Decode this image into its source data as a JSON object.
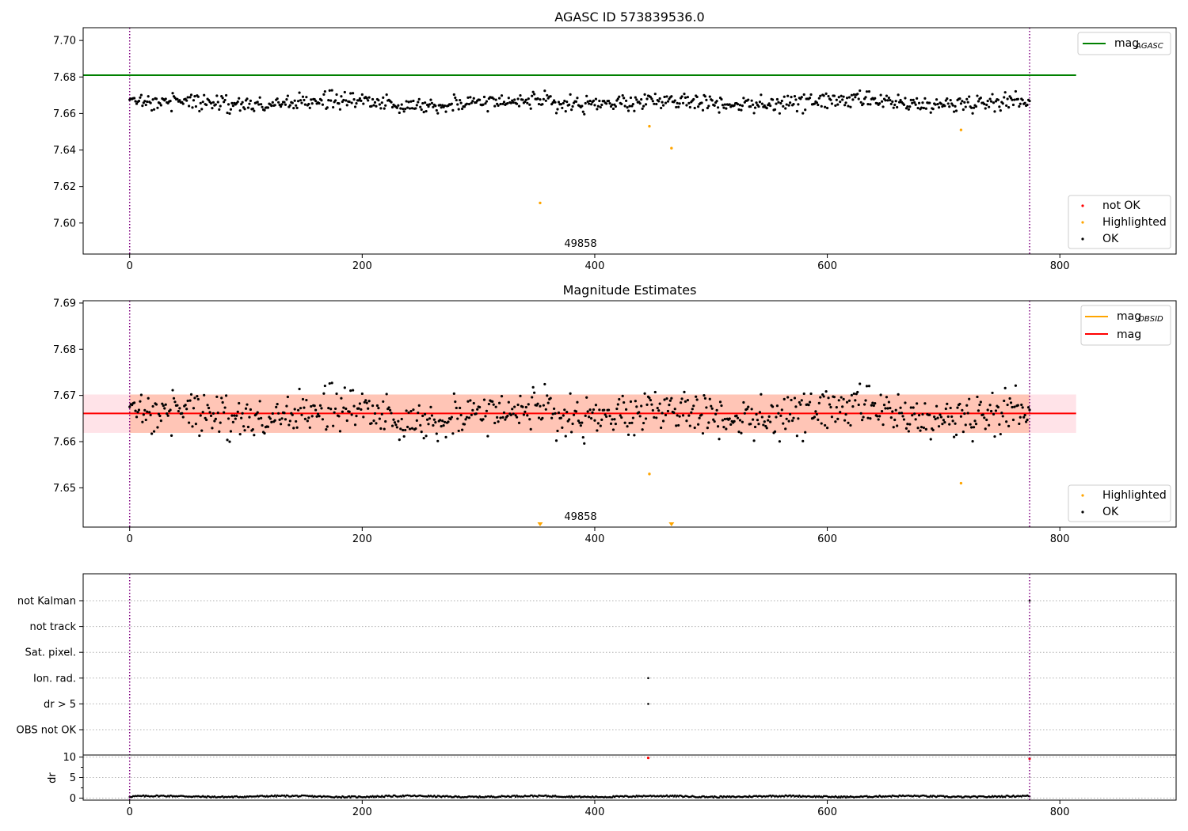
{
  "chart_data": [
    {
      "type": "scatter",
      "title": "AGASC ID 573839536.0",
      "xlim": [
        -40,
        900
      ],
      "ylim": [
        7.583,
        7.707
      ],
      "xticks": [
        0,
        200,
        400,
        600,
        800
      ],
      "yticks": [
        7.6,
        7.62,
        7.64,
        7.66,
        7.68,
        7.7
      ],
      "ytick_labels": [
        "7.60",
        "7.62",
        "7.64",
        "7.66",
        "7.68",
        "7.70"
      ],
      "vlines": [
        0,
        774
      ],
      "vline_color": "#800080",
      "annotation": "49858",
      "annotation_x": 387,
      "hlines": [
        {
          "name": "mag",
          "subscript": "AGASC",
          "y": 7.681,
          "x": [
            -40,
            814
          ],
          "color": "#008000"
        }
      ],
      "ok_points": {
        "n": 775,
        "x_range": [
          0,
          774
        ],
        "mean": 7.666,
        "spread": 0.0045,
        "color": "#000000"
      },
      "highlighted_points": [
        {
          "x": 353,
          "y": 7.611
        },
        {
          "x": 447,
          "y": 7.653
        },
        {
          "x": 466,
          "y": 7.641
        },
        {
          "x": 715,
          "y": 7.651
        }
      ],
      "legend_top": [
        {
          "label": "mag",
          "subscript": "AGASC",
          "kind": "line",
          "color": "#008000"
        }
      ],
      "legend_bottom": [
        {
          "label": "not OK",
          "kind": "dot",
          "color": "#ff0000"
        },
        {
          "label": "Highlighted",
          "kind": "dot",
          "color": "#ffa500"
        },
        {
          "label": "OK",
          "kind": "dot",
          "color": "#000000"
        }
      ]
    },
    {
      "type": "scatter",
      "title": "Magnitude Estimates",
      "xlim": [
        -40,
        900
      ],
      "ylim": [
        7.6415,
        7.6905
      ],
      "xticks": [
        0,
        200,
        400,
        600,
        800
      ],
      "yticks": [
        7.65,
        7.66,
        7.67,
        7.68,
        7.69
      ],
      "ytick_labels": [
        "7.65",
        "7.66",
        "7.67",
        "7.68",
        "7.69"
      ],
      "vlines": [
        0,
        774
      ],
      "vline_color": "#800080",
      "annotation": "49858",
      "annotation_x": 387,
      "band_outer": {
        "x": [
          -40,
          814
        ],
        "y": [
          7.6619,
          7.6702
        ],
        "color": "#ffc0cb"
      },
      "band_inner": {
        "x": [
          0,
          774
        ],
        "y": [
          7.6619,
          7.6702
        ],
        "color": "#ffa07a"
      },
      "hlines": [
        {
          "name": "mag",
          "subscript": "",
          "y": 7.6661,
          "x": [
            -40,
            814
          ],
          "color": "#ff0000"
        }
      ],
      "ok_points": {
        "n": 775,
        "x_range": [
          0,
          774
        ],
        "mean": 7.666,
        "spread": 0.0045,
        "color": "#000000"
      },
      "highlighted_points": [
        {
          "x": 447,
          "y": 7.653
        },
        {
          "x": 715,
          "y": 7.651
        }
      ],
      "offscale_markers": [
        353,
        466
      ],
      "legend_top": [
        {
          "label": "mag",
          "subscript": "OBSID",
          "kind": "line",
          "color": "#ffa500"
        },
        {
          "label": "mag",
          "subscript": "",
          "kind": "line",
          "color": "#ff0000"
        }
      ],
      "legend_bottom": [
        {
          "label": "Highlighted",
          "kind": "dot",
          "color": "#ffa500"
        },
        {
          "label": "OK",
          "kind": "dot",
          "color": "#000000"
        }
      ]
    },
    {
      "type": "scatter",
      "title": "",
      "xlim": [
        -40,
        900
      ],
      "xticks": [
        0,
        200,
        400,
        600,
        800
      ],
      "vlines": [
        0,
        774
      ],
      "vline_color": "#800080",
      "flag_categories": [
        "not Kalman",
        "not track",
        "Sat. pixel.",
        "Ion. rad.",
        "dr > 5",
        "OBS not OK"
      ],
      "flag_points": [
        {
          "category": "Ion. rad.",
          "x": 446
        },
        {
          "category": "dr > 5",
          "x": 446
        },
        {
          "category": "not Kalman",
          "x": 774
        }
      ],
      "dr": {
        "ylabel": "dr",
        "ylim": [
          -0.5,
          10.5
        ],
        "yticks": [
          0,
          5,
          10
        ],
        "ytick_labels": [
          "0",
          "5",
          "10"
        ],
        "minor_yticks": [
          2.5,
          7.5
        ],
        "typical_range": [
          0.1,
          0.7
        ],
        "outliers": [
          {
            "x": 446,
            "y": 9.8,
            "color": "#ff0000"
          },
          {
            "x": 774,
            "y": 9.6,
            "color": "#ff0000"
          }
        ]
      }
    }
  ]
}
